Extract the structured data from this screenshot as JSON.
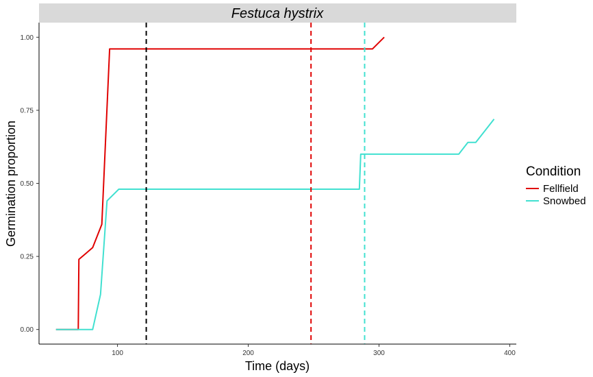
{
  "chart_data": {
    "type": "line",
    "panel_title": "Festuca hystrix",
    "xlabel": "Time (days)",
    "ylabel": "Germination proportion",
    "xlim": [
      40,
      405
    ],
    "ylim": [
      -0.05,
      1.05
    ],
    "x_ticks": [
      100,
      200,
      300,
      400
    ],
    "y_ticks": [
      0.0,
      0.25,
      0.5,
      0.75,
      1.0
    ],
    "y_tick_labels": [
      "0.00",
      "0.25",
      "0.50",
      "0.75",
      "1.00"
    ],
    "grid": false,
    "legend": {
      "title": "Condition",
      "position": "right"
    },
    "series": [
      {
        "name": "Fellfield",
        "color": "#e00000",
        "points": [
          [
            53,
            0
          ],
          [
            70,
            0
          ],
          [
            70.5,
            0.24
          ],
          [
            81,
            0.28
          ],
          [
            88,
            0.36
          ],
          [
            94,
            0.96
          ],
          [
            295,
            0.96
          ],
          [
            304,
            1.0
          ]
        ]
      },
      {
        "name": "Snowbed",
        "color": "#40e0d0",
        "points": [
          [
            53,
            0
          ],
          [
            81,
            0
          ],
          [
            87,
            0.12
          ],
          [
            92,
            0.44
          ],
          [
            101,
            0.48
          ],
          [
            285,
            0.48
          ],
          [
            286,
            0.6
          ],
          [
            361,
            0.6
          ],
          [
            368,
            0.64
          ],
          [
            374,
            0.64
          ],
          [
            381,
            0.68
          ],
          [
            388,
            0.72
          ]
        ]
      }
    ],
    "vlines": [
      {
        "x": 122,
        "color": "#000000",
        "style": "dashed"
      },
      {
        "x": 248,
        "color": "#e00000",
        "style": "dashed"
      },
      {
        "x": 289,
        "color": "#40e0d0",
        "style": "dashed"
      }
    ]
  }
}
